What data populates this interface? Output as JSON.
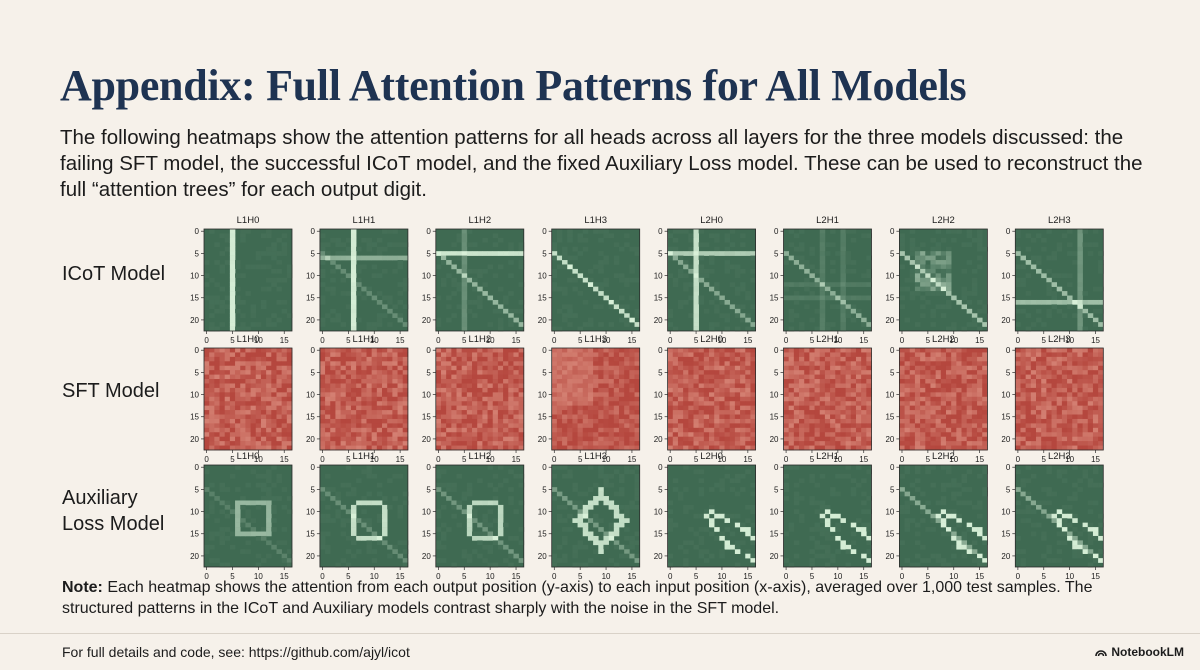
{
  "title": "Appendix: Full Attention Patterns for All Models",
  "intro": "The following heatmaps show the attention patterns for all heads across all layers for the three models discussed: the failing SFT model, the successful ICoT model, and the fixed Auxiliary Loss model. These can be used to reconstruct the full “attention trees” for each output digit.",
  "rows": [
    {
      "label_lines": [
        "ICoT Model"
      ]
    },
    {
      "label_lines": [
        "SFT Model"
      ]
    },
    {
      "label_lines": [
        "Auxiliary",
        "Loss Model"
      ]
    }
  ],
  "note": {
    "bold": "Note:",
    "text": " Each heatmap shows the attention from each output position (y-axis) to each input position (x-axis), averaged over 1,000 test samples. The structured patterns in the ICoT and Auxiliary models contrast sharply with the noise in the SFT model."
  },
  "footer": "For full details and code, see: https://github.com/ajyl/icot",
  "brand": "NotebookLM",
  "chart_data": {
    "type": "heatmap",
    "heads": [
      "L1H0",
      "L1H1",
      "L1H2",
      "L1H3",
      "L2H0",
      "L2H1",
      "L2H2",
      "L2H3"
    ],
    "x_ticks": [
      0,
      5,
      10,
      15
    ],
    "y_ticks": [
      0,
      5,
      10,
      15,
      20
    ],
    "xlim": [
      0,
      17
    ],
    "ylim": [
      0,
      23
    ],
    "grid": false,
    "panels": [
      {
        "model": "ICoT Model",
        "colors": {
          "background": "#3f6a52",
          "highlight": "#d8f0d8"
        },
        "patterns": [
          "vcol_5",
          "cross_6_6",
          "hrow_6_diag",
          "diag_strong",
          "cross_5_6",
          "diag_faint",
          "diag_block",
          "diag_hrow_16"
        ]
      },
      {
        "model": "SFT Model",
        "colors": {
          "background": "#b5473e",
          "highlight": "#e8a594"
        },
        "patterns": [
          "noise",
          "noise",
          "noise",
          "noise_block",
          "noise",
          "noise",
          "noise",
          "noise"
        ]
      },
      {
        "model": "Auxiliary Loss Model",
        "colors": {
          "background": "#3f6a52",
          "highlight": "#d8f0d8"
        },
        "patterns": [
          "square",
          "square_round",
          "square_round_diag",
          "diamond_diag",
          "rhombus",
          "rhombus",
          "rhombus_diag",
          "rhombus_diag"
        ]
      }
    ]
  }
}
